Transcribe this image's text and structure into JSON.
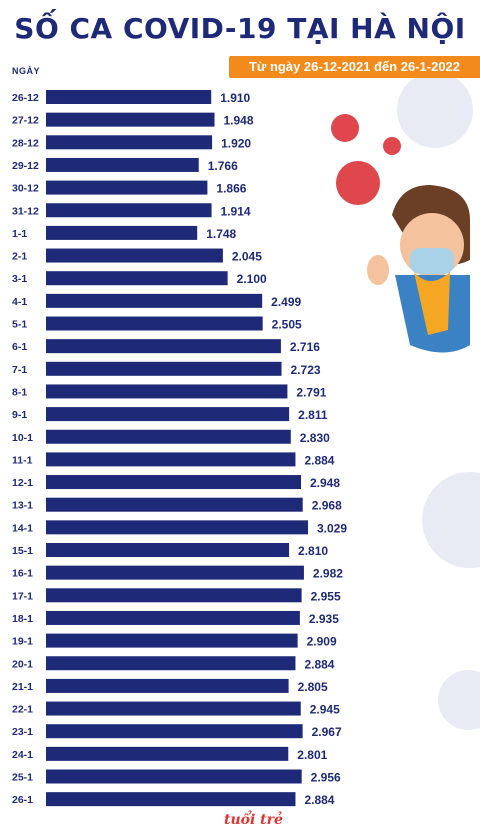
{
  "title": "SỐ CA COVID-19 TẠI HÀ NỘI",
  "subtitle": "Từ ngày 26-12-2021 đến 26-1-2022",
  "axis_label": "NGÀY",
  "logo_text": "tuổi trẻ",
  "colors": {
    "bar": "#1e2a78",
    "title": "#1e2a78",
    "accent": "#f28a1c",
    "virus": "#e0474c"
  },
  "chart_data": {
    "type": "bar",
    "orientation": "horizontal",
    "title": "SỐ CA COVID-19 TẠI HÀ NỘI",
    "subtitle": "Từ ngày 26-12-2021 đến 26-1-2022",
    "ylabel": "NGÀY",
    "xlim": [
      0,
      3100
    ],
    "categories": [
      "26-12",
      "27-12",
      "28-12",
      "29-12",
      "30-12",
      "31-12",
      "1-1",
      "2-1",
      "3-1",
      "4-1",
      "5-1",
      "6-1",
      "7-1",
      "8-1",
      "9-1",
      "10-1",
      "11-1",
      "12-1",
      "13-1",
      "14-1",
      "15-1",
      "16-1",
      "17-1",
      "18-1",
      "19-1",
      "20-1",
      "21-1",
      "22-1",
      "23-1",
      "24-1",
      "25-1",
      "26-1"
    ],
    "values": [
      1910,
      1948,
      1920,
      1766,
      1866,
      1914,
      1748,
      2045,
      2100,
      2499,
      2505,
      2716,
      2723,
      2791,
      2811,
      2830,
      2884,
      2948,
      2968,
      3029,
      2810,
      2982,
      2955,
      2935,
      2909,
      2884,
      2805,
      2945,
      2967,
      2801,
      2956,
      2884
    ],
    "value_labels": [
      "1.910",
      "1.948",
      "1.920",
      "1.766",
      "1.866",
      "1.914",
      "1.748",
      "2.045",
      "2.100",
      "2.499",
      "2.505",
      "2.716",
      "2.723",
      "2.791",
      "2.811",
      "2.830",
      "2.884",
      "2.948",
      "2.968",
      "3.029",
      "2.810",
      "2.982",
      "2.955",
      "2.935",
      "2.909",
      "2.884",
      "2.805",
      "2.945",
      "2.967",
      "2.801",
      "2.956",
      "2.884"
    ]
  }
}
